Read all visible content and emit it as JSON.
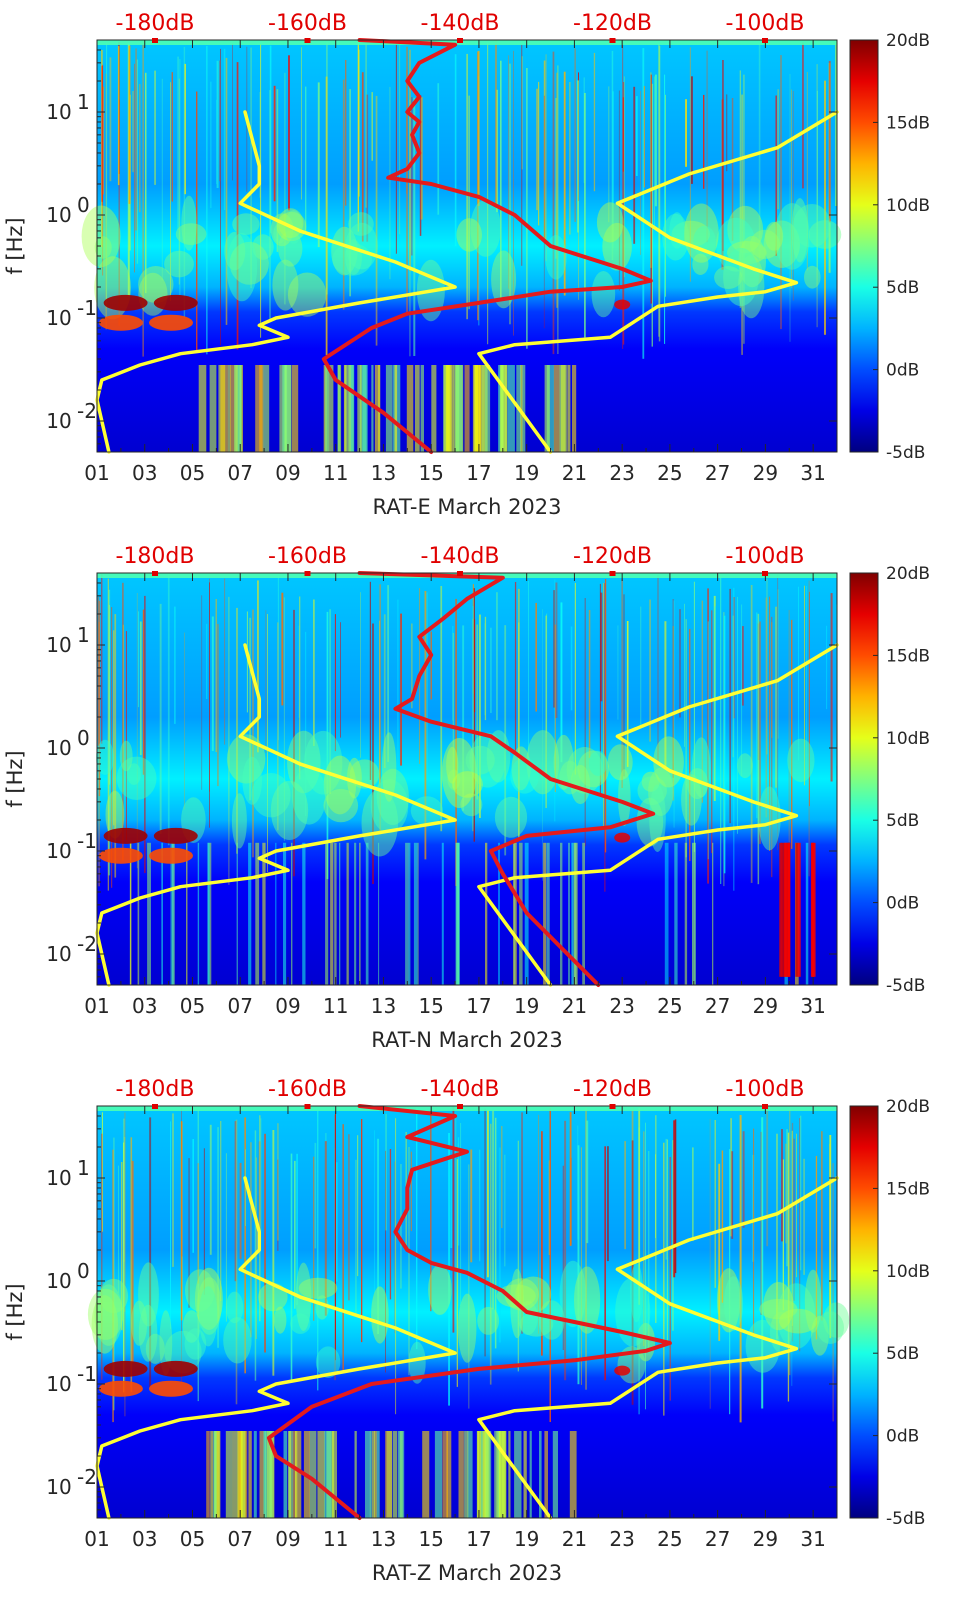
{
  "chart_data": [
    {
      "type": "heatmap",
      "station": "RAT-E",
      "xlabel": "RAT-E March 2023",
      "ylabel": "f [Hz]",
      "xlim": [
        1,
        32
      ],
      "ylim": [
        0.005,
        50
      ],
      "yscale": "log",
      "x_ticks": [
        "01",
        "03",
        "05",
        "07",
        "09",
        "11",
        "13",
        "15",
        "17",
        "19",
        "21",
        "23",
        "25",
        "27",
        "29",
        "31"
      ],
      "y_ticks": [
        {
          "v": 0.01,
          "label": "10",
          "exp": "-2"
        },
        {
          "v": 0.1,
          "label": "10",
          "exp": "-1"
        },
        {
          "v": 1,
          "label": "10",
          "exp": "0"
        },
        {
          "v": 10,
          "label": "10",
          "exp": "1"
        }
      ],
      "top_axis_labels": [
        "-180dB",
        "-160dB",
        "-140dB",
        "-120dB",
        "-100dB"
      ],
      "colorbar": {
        "range": [
          -5,
          20
        ],
        "labels": [
          "20dB",
          "15dB",
          "10dB",
          "5dB",
          "0dB",
          "-5dB"
        ]
      },
      "series": [
        {
          "name": "yellow-low-noise-model",
          "color": "#ffff33",
          "points": [
            [
              1.5,
              0.005
            ],
            [
              1.0,
              0.016
            ],
            [
              1.2,
              0.025
            ],
            [
              2.8,
              0.035
            ],
            [
              4.5,
              0.045
            ],
            [
              7.5,
              0.055
            ],
            [
              9.0,
              0.065
            ],
            [
              7.8,
              0.085
            ],
            [
              8.5,
              0.1
            ],
            [
              12.0,
              0.14
            ],
            [
              16.0,
              0.2
            ],
            [
              13.5,
              0.35
            ],
            [
              9.5,
              0.7
            ],
            [
              7.0,
              1.3
            ],
            [
              7.8,
              2.0
            ],
            [
              7.8,
              3.0
            ],
            [
              7.2,
              10.0
            ]
          ]
        },
        {
          "name": "yellow-high-noise-model",
          "color": "#ffff33",
          "points": [
            [
              20.0,
              0.005
            ],
            [
              17.0,
              0.045
            ],
            [
              18.5,
              0.055
            ],
            [
              22.5,
              0.065
            ],
            [
              24.5,
              0.13
            ],
            [
              27.0,
              0.16
            ],
            [
              29.0,
              0.18
            ],
            [
              30.3,
              0.22
            ],
            [
              28.5,
              0.3
            ],
            [
              25.0,
              0.6
            ],
            [
              22.8,
              1.3
            ],
            [
              25.8,
              2.5
            ],
            [
              29.5,
              4.5
            ],
            [
              32.0,
              10.0
            ]
          ]
        },
        {
          "name": "red-median-psd",
          "color": "#e41a1c",
          "points": [
            [
              15.0,
              0.005
            ],
            [
              13.0,
              0.012
            ],
            [
              11.0,
              0.025
            ],
            [
              10.5,
              0.04
            ],
            [
              12.5,
              0.08
            ],
            [
              14.0,
              0.11
            ],
            [
              17.0,
              0.14
            ],
            [
              20.0,
              0.18
            ],
            [
              23.0,
              0.2
            ],
            [
              24.2,
              0.23
            ],
            [
              23.0,
              0.3
            ],
            [
              20.0,
              0.5
            ],
            [
              18.5,
              1.0
            ],
            [
              17.0,
              1.5
            ],
            [
              15.0,
              2.0
            ],
            [
              13.2,
              2.3
            ],
            [
              14.0,
              2.8
            ],
            [
              14.5,
              4.0
            ],
            [
              14.2,
              6.0
            ],
            [
              14.5,
              8.0
            ],
            [
              14.0,
              10.0
            ],
            [
              14.5,
              14.0
            ],
            [
              14.0,
              20.0
            ],
            [
              14.5,
              30.0
            ],
            [
              16.0,
              45.0
            ],
            [
              12.0,
              50.0
            ]
          ]
        }
      ]
    },
    {
      "type": "heatmap",
      "station": "RAT-N",
      "xlabel": "RAT-N March 2023",
      "ylabel": "f [Hz]",
      "xlim": [
        1,
        32
      ],
      "ylim": [
        0.005,
        50
      ],
      "yscale": "log",
      "x_ticks": [
        "01",
        "03",
        "05",
        "07",
        "09",
        "11",
        "13",
        "15",
        "17",
        "19",
        "21",
        "23",
        "25",
        "27",
        "29",
        "31"
      ],
      "y_ticks": [
        {
          "v": 0.01,
          "label": "10",
          "exp": "-2"
        },
        {
          "v": 0.1,
          "label": "10",
          "exp": "-1"
        },
        {
          "v": 1,
          "label": "10",
          "exp": "0"
        },
        {
          "v": 10,
          "label": "10",
          "exp": "1"
        }
      ],
      "top_axis_labels": [
        "-180dB",
        "-160dB",
        "-140dB",
        "-120dB",
        "-100dB"
      ],
      "colorbar": {
        "range": [
          -5,
          20
        ],
        "labels": [
          "20dB",
          "15dB",
          "10dB",
          "5dB",
          "0dB",
          "-5dB"
        ]
      },
      "series": [
        {
          "name": "yellow-low-noise-model",
          "color": "#ffff33",
          "points": [
            [
              1.5,
              0.005
            ],
            [
              1.0,
              0.016
            ],
            [
              1.2,
              0.025
            ],
            [
              2.8,
              0.035
            ],
            [
              4.5,
              0.045
            ],
            [
              7.5,
              0.055
            ],
            [
              9.0,
              0.065
            ],
            [
              7.8,
              0.085
            ],
            [
              8.5,
              0.1
            ],
            [
              12.0,
              0.14
            ],
            [
              16.0,
              0.2
            ],
            [
              13.5,
              0.35
            ],
            [
              9.5,
              0.7
            ],
            [
              7.0,
              1.3
            ],
            [
              7.8,
              2.0
            ],
            [
              7.8,
              3.0
            ],
            [
              7.2,
              10.0
            ]
          ]
        },
        {
          "name": "yellow-high-noise-model",
          "color": "#ffff33",
          "points": [
            [
              20.0,
              0.005
            ],
            [
              17.0,
              0.045
            ],
            [
              18.5,
              0.055
            ],
            [
              22.5,
              0.065
            ],
            [
              24.5,
              0.13
            ],
            [
              27.0,
              0.16
            ],
            [
              29.0,
              0.18
            ],
            [
              30.3,
              0.22
            ],
            [
              28.5,
              0.3
            ],
            [
              25.0,
              0.6
            ],
            [
              22.8,
              1.3
            ],
            [
              25.8,
              2.5
            ],
            [
              29.5,
              4.5
            ],
            [
              32.0,
              10.0
            ]
          ]
        },
        {
          "name": "red-median-psd",
          "color": "#e41a1c",
          "points": [
            [
              22.0,
              0.005
            ],
            [
              19.0,
              0.025
            ],
            [
              18.0,
              0.06
            ],
            [
              17.5,
              0.1
            ],
            [
              19.0,
              0.14
            ],
            [
              22.5,
              0.17
            ],
            [
              24.3,
              0.23
            ],
            [
              23.0,
              0.3
            ],
            [
              20.0,
              0.5
            ],
            [
              18.5,
              0.9
            ],
            [
              17.5,
              1.3
            ],
            [
              15.0,
              1.8
            ],
            [
              13.5,
              2.4
            ],
            [
              14.2,
              3.0
            ],
            [
              14.5,
              5.0
            ],
            [
              15.0,
              8.0
            ],
            [
              14.5,
              12.0
            ],
            [
              15.5,
              18.0
            ],
            [
              16.5,
              28.0
            ],
            [
              18.0,
              45.0
            ],
            [
              12.0,
              50.0
            ]
          ]
        }
      ]
    },
    {
      "type": "heatmap",
      "station": "RAT-Z",
      "xlabel": "RAT-Z March 2023",
      "ylabel": "f [Hz]",
      "xlim": [
        1,
        32
      ],
      "ylim": [
        0.005,
        50
      ],
      "yscale": "log",
      "x_ticks": [
        "01",
        "03",
        "05",
        "07",
        "09",
        "11",
        "13",
        "15",
        "17",
        "19",
        "21",
        "23",
        "25",
        "27",
        "29",
        "31"
      ],
      "y_ticks": [
        {
          "v": 0.01,
          "label": "10",
          "exp": "-2"
        },
        {
          "v": 0.1,
          "label": "10",
          "exp": "-1"
        },
        {
          "v": 1,
          "label": "10",
          "exp": "0"
        },
        {
          "v": 10,
          "label": "10",
          "exp": "1"
        }
      ],
      "top_axis_labels": [
        "-180dB",
        "-160dB",
        "-140dB",
        "-120dB",
        "-100dB"
      ],
      "colorbar": {
        "range": [
          -5,
          20
        ],
        "labels": [
          "20dB",
          "15dB",
          "10dB",
          "5dB",
          "0dB",
          "-5dB"
        ]
      },
      "series": [
        {
          "name": "yellow-low-noise-model",
          "color": "#ffff33",
          "points": [
            [
              1.5,
              0.005
            ],
            [
              1.0,
              0.016
            ],
            [
              1.2,
              0.025
            ],
            [
              2.8,
              0.035
            ],
            [
              4.5,
              0.045
            ],
            [
              7.5,
              0.055
            ],
            [
              9.0,
              0.065
            ],
            [
              7.8,
              0.085
            ],
            [
              8.5,
              0.1
            ],
            [
              12.0,
              0.14
            ],
            [
              16.0,
              0.2
            ],
            [
              13.5,
              0.35
            ],
            [
              9.5,
              0.7
            ],
            [
              7.0,
              1.3
            ],
            [
              7.8,
              2.0
            ],
            [
              7.8,
              3.0
            ],
            [
              7.2,
              10.0
            ]
          ]
        },
        {
          "name": "yellow-high-noise-model",
          "color": "#ffff33",
          "points": [
            [
              20.0,
              0.005
            ],
            [
              17.0,
              0.045
            ],
            [
              18.5,
              0.055
            ],
            [
              22.5,
              0.065
            ],
            [
              24.5,
              0.13
            ],
            [
              27.0,
              0.16
            ],
            [
              29.0,
              0.18
            ],
            [
              30.3,
              0.22
            ],
            [
              28.5,
              0.3
            ],
            [
              25.0,
              0.6
            ],
            [
              22.8,
              1.3
            ],
            [
              25.8,
              2.5
            ],
            [
              29.5,
              4.5
            ],
            [
              32.0,
              10.0
            ]
          ]
        },
        {
          "name": "red-median-psd",
          "color": "#e41a1c",
          "points": [
            [
              12.0,
              0.005
            ],
            [
              10.0,
              0.012
            ],
            [
              8.5,
              0.02
            ],
            [
              8.2,
              0.03
            ],
            [
              10.0,
              0.06
            ],
            [
              12.5,
              0.1
            ],
            [
              17.0,
              0.14
            ],
            [
              21.0,
              0.17
            ],
            [
              24.0,
              0.21
            ],
            [
              25.0,
              0.25
            ],
            [
              23.0,
              0.32
            ],
            [
              19.0,
              0.5
            ],
            [
              18.0,
              0.8
            ],
            [
              16.5,
              1.2
            ],
            [
              15.0,
              1.5
            ],
            [
              14.0,
              2.0
            ],
            [
              13.5,
              3.0
            ],
            [
              14.0,
              5.0
            ],
            [
              14.0,
              8.0
            ],
            [
              14.2,
              12.0
            ],
            [
              16.5,
              18.0
            ],
            [
              14.0,
              25.0
            ],
            [
              16.0,
              40.0
            ],
            [
              12.0,
              50.0
            ]
          ]
        }
      ]
    }
  ]
}
